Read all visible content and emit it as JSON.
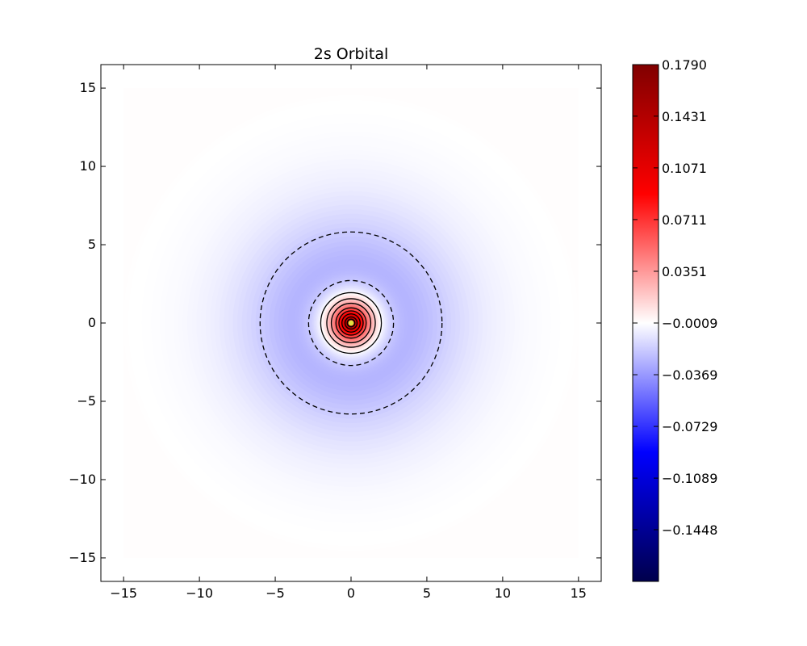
{
  "chart_data": {
    "type": "contour",
    "title": "2s Orbital",
    "xlabel": "",
    "ylabel": "",
    "xlim": [
      -16.5,
      16.5
    ],
    "ylim": [
      -16.5,
      16.5
    ],
    "grid": false,
    "x_ticks": [
      -15,
      -10,
      -5,
      0,
      5,
      10,
      15
    ],
    "x_tick_labels": [
      "−15",
      "−10",
      "−5",
      "0",
      "5",
      "10",
      "15"
    ],
    "y_ticks": [
      15,
      10,
      5,
      0,
      -5,
      -10,
      -15
    ],
    "y_tick_labels": [
      "15",
      "10",
      "5",
      "0",
      "−5",
      "−10",
      "−15"
    ],
    "field_extent": [
      -15,
      15
    ],
    "value_range": [
      -0.1808,
      0.179
    ],
    "colormap": "seismic",
    "colormap_stops": [
      "#00004c",
      "#0000ff",
      "#ffffff",
      "#ff0000",
      "#800000"
    ],
    "colorbar": {
      "ticks": [
        0.179,
        0.1431,
        0.1071,
        0.0711,
        0.0351,
        -0.0009,
        -0.0369,
        -0.0729,
        -0.1089,
        -0.1448
      ],
      "tick_labels": [
        "0.1790",
        "0.1431",
        "0.1071",
        "0.0711",
        "0.0351",
        "−0.0009",
        "−0.0369",
        "−0.0729",
        "−0.1089",
        "−0.1448"
      ]
    },
    "contour_lines": [
      {
        "radius": 6.0,
        "style": "dashed"
      },
      {
        "radius": 2.8,
        "style": "dashed"
      },
      {
        "radius": 2.0,
        "style": "solid"
      },
      {
        "radius": 1.6,
        "style": "solid"
      },
      {
        "radius": 1.3,
        "style": "solid"
      },
      {
        "radius": 1.0,
        "style": "solid"
      },
      {
        "radius": 0.8,
        "style": "solid"
      },
      {
        "radius": 0.6,
        "style": "solid"
      },
      {
        "radius": 0.4,
        "style": "solid"
      },
      {
        "radius": 0.25,
        "style": "solid"
      }
    ],
    "center_color": "#e0e040"
  }
}
